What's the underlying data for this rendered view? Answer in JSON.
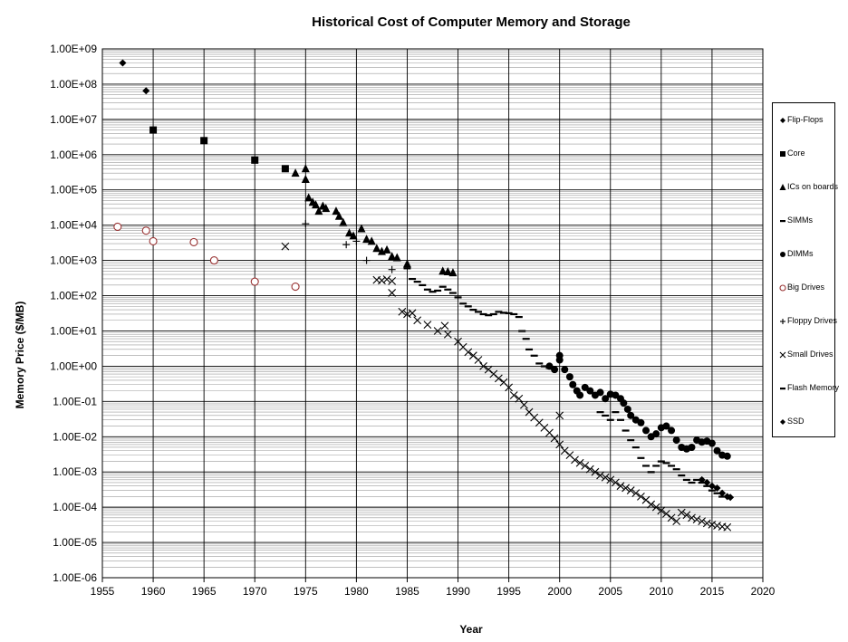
{
  "chart_data": {
    "type": "scatter",
    "title": "Historical Cost of Computer Memory and Storage",
    "xlabel": "Year",
    "ylabel": "Memory Price ($/MB)",
    "xlim": [
      1955,
      2020
    ],
    "ylim_log10": [
      -6,
      9
    ],
    "y_scale": "log",
    "grid": true,
    "legend_position": "right",
    "x_ticks": [
      "1955",
      "1960",
      "1965",
      "1970",
      "1975",
      "1980",
      "1985",
      "1990",
      "1995",
      "2000",
      "2005",
      "2010",
      "2015",
      "2020"
    ],
    "y_ticks": [
      "1.00E-06",
      "1.00E-05",
      "1.00E-04",
      "1.00E-03",
      "1.00E-02",
      "1.00E-01",
      "1.00E+00",
      "1.00E+01",
      "1.00E+02",
      "1.00E+03",
      "1.00E+04",
      "1.00E+05",
      "1.00E+06",
      "1.00E+07",
      "1.00E+08",
      "1.00E+09"
    ],
    "series": [
      {
        "name": "Flip-Flops",
        "marker": "diamond",
        "color": "#000000",
        "points": [
          [
            1957,
            400000000.0
          ],
          [
            1959.3,
            65000000.0
          ]
        ]
      },
      {
        "name": "Core",
        "marker": "square",
        "color": "#000000",
        "points": [
          [
            1960,
            5000000.0
          ],
          [
            1965,
            2500000.0
          ],
          [
            1970,
            700000.0
          ],
          [
            1973,
            400000.0
          ]
        ]
      },
      {
        "name": "ICs on boards",
        "marker": "triangle",
        "color": "#000000",
        "points": [
          [
            1974,
            300000.0
          ],
          [
            1975,
            400000.0
          ],
          [
            1975,
            200000.0
          ],
          [
            1975.3,
            60000.0
          ],
          [
            1975.7,
            45000.0
          ],
          [
            1976,
            38000.0
          ],
          [
            1976.3,
            25000.0
          ],
          [
            1976.7,
            35000.0
          ],
          [
            1977,
            30000.0
          ],
          [
            1978,
            25000.0
          ],
          [
            1978.3,
            18000.0
          ],
          [
            1978.7,
            12000.0
          ],
          [
            1979.3,
            6000.0
          ],
          [
            1979.7,
            5000.0
          ],
          [
            1980.5,
            8000.0
          ],
          [
            1981,
            4000.0
          ],
          [
            1981.5,
            3500.0
          ],
          [
            1982,
            2200.0
          ],
          [
            1982.5,
            1800.0
          ],
          [
            1983,
            2000.0
          ],
          [
            1983.5,
            1300.0
          ],
          [
            1984,
            1200.0
          ],
          [
            1985,
            800.0
          ],
          [
            1988.5,
            500.0
          ],
          [
            1989,
            480.0
          ],
          [
            1989.5,
            450.0
          ]
        ]
      },
      {
        "name": "SIMMs",
        "marker": "dash",
        "color": "#000000",
        "points": [
          [
            1985,
            600.0
          ],
          [
            1985.5,
            300.0
          ],
          [
            1986,
            250.0
          ],
          [
            1986.5,
            200.0
          ],
          [
            1987,
            150.0
          ],
          [
            1987.5,
            130.0
          ],
          [
            1988,
            140.0
          ],
          [
            1988.5,
            180.0
          ],
          [
            1989,
            150.0
          ],
          [
            1989.5,
            120.0
          ],
          [
            1990,
            90.0
          ],
          [
            1990.5,
            60.0
          ],
          [
            1991,
            50.0
          ],
          [
            1991.5,
            40.0
          ],
          [
            1992,
            35.0
          ],
          [
            1992.5,
            30.0
          ],
          [
            1993,
            28.0
          ],
          [
            1993.5,
            30.0
          ],
          [
            1994,
            35.0
          ],
          [
            1994.5,
            33.0
          ],
          [
            1995,
            32.0
          ],
          [
            1995.5,
            30.0
          ],
          [
            1996,
            25.0
          ],
          [
            1996.3,
            10.0
          ],
          [
            1996.7,
            6.0
          ],
          [
            1997,
            3.0
          ],
          [
            1997.5,
            2.0
          ],
          [
            1998,
            1.2
          ],
          [
            1998.5,
            1.0
          ],
          [
            1999,
            0.9
          ]
        ]
      },
      {
        "name": "DIMMs",
        "marker": "circle",
        "color": "#000000",
        "points": [
          [
            1999,
            1.0
          ],
          [
            1999.5,
            0.8
          ],
          [
            2000,
            1.5
          ],
          [
            2000,
            2.0
          ],
          [
            2000.5,
            0.8
          ],
          [
            2001,
            0.5
          ],
          [
            2001.3,
            0.3
          ],
          [
            2001.7,
            0.2
          ],
          [
            2002,
            0.15
          ],
          [
            2002.5,
            0.25
          ],
          [
            2003,
            0.2
          ],
          [
            2003.5,
            0.15
          ],
          [
            2004,
            0.18
          ],
          [
            2004.5,
            0.12
          ],
          [
            2005,
            0.16
          ],
          [
            2005.5,
            0.15
          ],
          [
            2006,
            0.12
          ],
          [
            2006.3,
            0.09
          ],
          [
            2006.7,
            0.06
          ],
          [
            2007,
            0.04
          ],
          [
            2007.5,
            0.03
          ],
          [
            2008,
            0.025
          ],
          [
            2008.5,
            0.015
          ],
          [
            2009,
            0.01
          ],
          [
            2009.5,
            0.012
          ],
          [
            2010,
            0.018
          ],
          [
            2010.5,
            0.02
          ],
          [
            2011,
            0.015
          ],
          [
            2011.5,
            0.008
          ],
          [
            2012,
            0.005
          ],
          [
            2012.5,
            0.0045
          ],
          [
            2013,
            0.005
          ],
          [
            2013.5,
            0.008
          ],
          [
            2014,
            0.007
          ],
          [
            2014.5,
            0.0075
          ],
          [
            2015,
            0.0065
          ],
          [
            2015.5,
            0.004
          ],
          [
            2016,
            0.003
          ],
          [
            2016.5,
            0.0028
          ]
        ]
      },
      {
        "name": "Big Drives",
        "marker": "circle-open",
        "color": "#993333",
        "points": [
          [
            1956.5,
            9000.0
          ],
          [
            1959.3,
            7000.0
          ],
          [
            1960,
            3500.0
          ],
          [
            1964,
            3300.0
          ],
          [
            1966,
            1000.0
          ],
          [
            1970,
            250.0
          ],
          [
            1974,
            180.0
          ]
        ]
      },
      {
        "name": "Floppy Drives",
        "marker": "plus",
        "color": "#000000",
        "points": [
          [
            1975,
            11000.0
          ],
          [
            1979,
            2800.0
          ],
          [
            1980,
            3500.0
          ],
          [
            1981,
            1000.0
          ],
          [
            1983.5,
            550.0
          ]
        ]
      },
      {
        "name": "Small Drives",
        "marker": "x",
        "color": "#000000",
        "points": [
          [
            1973,
            2500.0
          ],
          [
            1982,
            280.0
          ],
          [
            1982.5,
            270.0
          ],
          [
            1983,
            290.0
          ],
          [
            1983.5,
            260.0
          ],
          [
            1983.5,
            120.0
          ],
          [
            1984.5,
            35.0
          ],
          [
            1985,
            30.0
          ],
          [
            1985.5,
            32.0
          ],
          [
            1986,
            20.0
          ],
          [
            1987,
            15.0
          ],
          [
            1988,
            10.0
          ],
          [
            1988.7,
            14.0
          ],
          [
            1989,
            8.0
          ],
          [
            1990,
            5.0
          ],
          [
            1990.5,
            3.5
          ],
          [
            1991,
            2.5
          ],
          [
            1991.5,
            2.0
          ],
          [
            1992,
            1.5
          ],
          [
            1992.5,
            1.0
          ],
          [
            1993,
            0.8
          ],
          [
            1993.5,
            0.6
          ],
          [
            1994,
            0.45
          ],
          [
            1994.5,
            0.35
          ],
          [
            1995,
            0.25
          ],
          [
            1995.5,
            0.15
          ],
          [
            1996,
            0.12
          ],
          [
            1996.5,
            0.08
          ],
          [
            1997,
            0.05
          ],
          [
            1997.5,
            0.035
          ],
          [
            1998,
            0.025
          ],
          [
            1998.5,
            0.018
          ],
          [
            1999,
            0.013
          ],
          [
            1999.5,
            0.009
          ],
          [
            2000,
            0.006
          ],
          [
            2000,
            0.04
          ],
          [
            2000.5,
            0.004
          ],
          [
            2001,
            0.003
          ],
          [
            2001.5,
            0.0022
          ],
          [
            2002,
            0.0018
          ],
          [
            2002.5,
            0.0015
          ],
          [
            2003,
            0.0012
          ],
          [
            2003.5,
            0.001
          ],
          [
            2004,
            0.0008
          ],
          [
            2004.5,
            0.0007
          ],
          [
            2005,
            0.0006
          ],
          [
            2005.5,
            0.0005
          ],
          [
            2006,
            0.0004
          ],
          [
            2006.5,
            0.00035
          ],
          [
            2007,
            0.0003
          ],
          [
            2007.5,
            0.00025
          ],
          [
            2008,
            0.0002
          ],
          [
            2008.5,
            0.00016
          ],
          [
            2009,
            0.00012
          ],
          [
            2009.5,
            0.0001
          ],
          [
            2010,
            8e-05
          ],
          [
            2010.5,
            6.5e-05
          ],
          [
            2011,
            5e-05
          ],
          [
            2011.5,
            4e-05
          ],
          [
            2012,
            7e-05
          ],
          [
            2012.5,
            6e-05
          ],
          [
            2013,
            5e-05
          ],
          [
            2013.5,
            4.5e-05
          ],
          [
            2014,
            4e-05
          ],
          [
            2014.5,
            3.5e-05
          ],
          [
            2015,
            3.2e-05
          ],
          [
            2015.5,
            3e-05
          ],
          [
            2016,
            2.8e-05
          ],
          [
            2016.5,
            2.7e-05
          ]
        ]
      },
      {
        "name": "Flash Memory",
        "marker": "dash",
        "color": "#000000",
        "points": [
          [
            2004,
            0.05
          ],
          [
            2004.5,
            0.04
          ],
          [
            2005,
            0.03
          ],
          [
            2005.5,
            0.05
          ],
          [
            2006,
            0.03
          ],
          [
            2006.5,
            0.015
          ],
          [
            2007,
            0.008
          ],
          [
            2007.5,
            0.005
          ],
          [
            2008,
            0.0025
          ],
          [
            2008.5,
            0.0015
          ],
          [
            2009,
            0.001
          ],
          [
            2009.5,
            0.0015
          ],
          [
            2010,
            0.002
          ],
          [
            2010.5,
            0.0018
          ],
          [
            2011,
            0.0015
          ],
          [
            2011.5,
            0.0012
          ],
          [
            2012,
            0.0008
          ],
          [
            2012.5,
            0.0006
          ],
          [
            2013,
            0.0005
          ],
          [
            2013.5,
            0.0006
          ],
          [
            2014,
            0.0005
          ],
          [
            2014.5,
            0.0004
          ],
          [
            2015,
            0.0003
          ],
          [
            2015.5,
            0.00025
          ],
          [
            2016,
            0.0002
          ]
        ]
      },
      {
        "name": "SSD",
        "marker": "diamond",
        "color": "#000000",
        "points": [
          [
            2014,
            0.0006
          ],
          [
            2014.5,
            0.0005
          ],
          [
            2015,
            0.0004
          ],
          [
            2015.5,
            0.00035
          ],
          [
            2016,
            0.00025
          ],
          [
            2016.5,
            0.0002
          ],
          [
            2016.8,
            0.00019
          ]
        ]
      }
    ]
  }
}
